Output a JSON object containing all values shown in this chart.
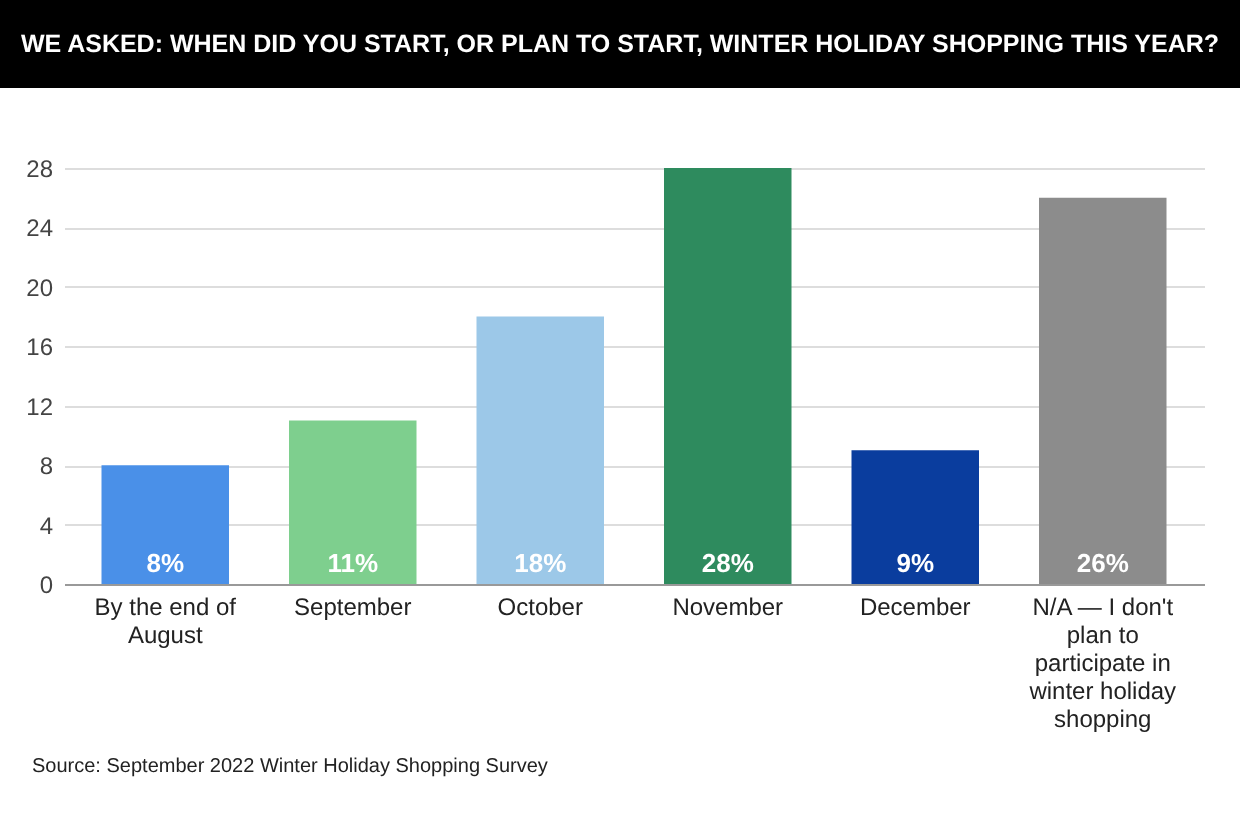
{
  "chart_data": {
    "type": "bar",
    "title": "WE ASKED: WHEN DID YOU START, OR PLAN TO START, WINTER HOLIDAY SHOPPING THIS YEAR?",
    "categories": [
      "By the end of August",
      "September",
      "October",
      "November",
      "December",
      "N/A — I don't plan to participate in winter holiday shopping"
    ],
    "values": [
      8,
      11,
      18,
      28,
      9,
      26
    ],
    "colors": [
      "#4a90e8",
      "#7ecf8e",
      "#9cc8e8",
      "#2e8b5e",
      "#0a3d9e",
      "#8c8c8c"
    ],
    "value_labels": [
      "8%",
      "11%",
      "18%",
      "28%",
      "9%",
      "26%"
    ],
    "ylim": [
      0,
      28
    ],
    "yticks": [
      0,
      4,
      8,
      12,
      16,
      20,
      24,
      28
    ],
    "grid": "y",
    "annotations": [
      "Source: September 2022 Winter Holiday Shopping Survey"
    ]
  }
}
